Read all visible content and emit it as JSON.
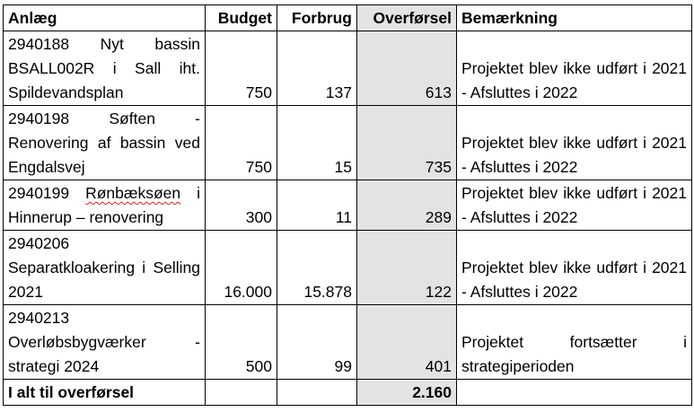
{
  "headers": {
    "anlaeg": "Anlæg",
    "budget": "Budget",
    "forbrug": "Forbrug",
    "overfoersel": "Overførsel",
    "bemaerkning": "Bemærkning"
  },
  "rows": [
    {
      "anlaeg": "2940188 Nyt bassin BSALL002R i Sall iht. Spildevandsplan",
      "budget": "750",
      "forbrug": "137",
      "overfoersel": "613",
      "bemaerkning": "Projektet blev ikke udført i 2021 - Afsluttes i 2022"
    },
    {
      "anlaeg": "2940198 Søften - Renovering af bassin ved Engdalsvej",
      "budget": "750",
      "forbrug": "15",
      "overfoersel": "735",
      "bemaerkning": "Projektet blev ikke udført i 2021 - Afsluttes i 2022"
    },
    {
      "anlaeg_code": "2940199",
      "anlaeg_spelled": "Rønbæksøen",
      "anlaeg_rest": "i Hinnerup – renovering",
      "budget": "300",
      "forbrug": "11",
      "overfoersel": "289",
      "bemaerkning": "Projektet blev ikke udført i 2021 - Afsluttes i 2022"
    },
    {
      "anlaeg": "2940206 Separatkloakering i Selling 2021",
      "budget": "16.000",
      "forbrug": "15.878",
      "overfoersel": "122",
      "bemaerkning": "Projektet blev ikke udført i 2021 - Afsluttes i 2022"
    },
    {
      "anlaeg": "2940213 Overløbsbygværker - strategi 2024",
      "budget": "500",
      "forbrug": "99",
      "overfoersel": "401",
      "bemaerkning": "Projektet fortsætter i strategiperioden"
    }
  ],
  "total": {
    "label": "I alt til overførsel",
    "overfoersel": "2.160"
  },
  "colors": {
    "shade": "#e3e3e3",
    "border": "#000000",
    "spellcheck": "#d22222"
  }
}
